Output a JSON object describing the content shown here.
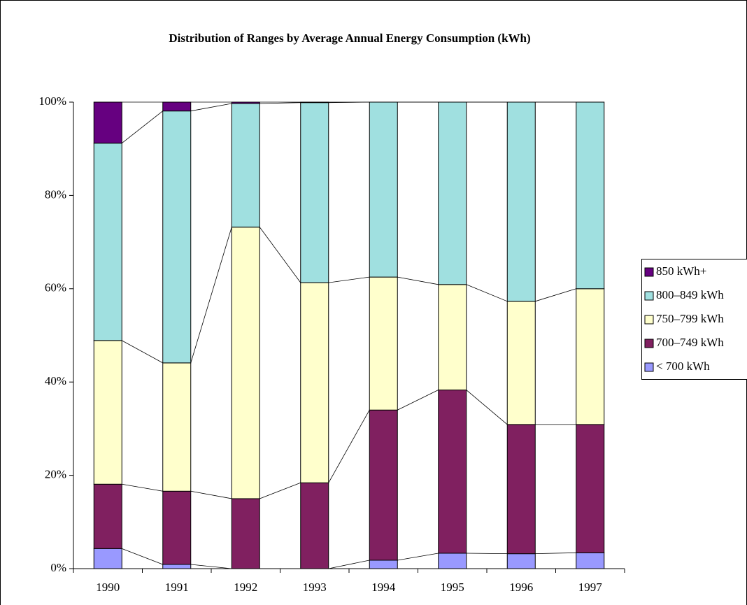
{
  "chart_data": {
    "type": "stacked_bar_100",
    "title": "Distribution of Ranges by Average Annual Energy Consumption (kWh)",
    "categories": [
      "1990",
      "1991",
      "1992",
      "1993",
      "1994",
      "1995",
      "1996",
      "1997"
    ],
    "series": [
      {
        "name": "< 700 kWh",
        "color": "#9999ff",
        "values": [
          4.3,
          0.9,
          0,
          0,
          1.8,
          3.3,
          3.2,
          3.4
        ]
      },
      {
        "name": "700–749 kWh",
        "color": "#802060",
        "values": [
          13.8,
          15.7,
          15.0,
          18.4,
          32.2,
          35.0,
          27.7,
          27.5
        ]
      },
      {
        "name": "750–799 kWh",
        "color": "#ffffcc",
        "values": [
          30.8,
          27.5,
          58.2,
          42.9,
          28.5,
          22.6,
          26.4,
          29.1
        ]
      },
      {
        "name": "800–849 kWh",
        "color": "#a0e0e0",
        "values": [
          42.3,
          54.0,
          26.5,
          38.6,
          37.5,
          39.1,
          42.7,
          40.0
        ]
      },
      {
        "name": "850 kWh+",
        "color": "#660080",
        "values": [
          8.8,
          1.9,
          0.3,
          0.1,
          0,
          0,
          0,
          0
        ]
      }
    ],
    "ylim": [
      0,
      100
    ],
    "yticks": [
      {
        "value": 0,
        "label": "0%"
      },
      {
        "value": 20,
        "label": "20%"
      },
      {
        "value": 40,
        "label": "40%"
      },
      {
        "value": 60,
        "label": "60%"
      },
      {
        "value": 80,
        "label": "80%"
      },
      {
        "value": 100,
        "label": "100%"
      }
    ],
    "legend": "right"
  }
}
